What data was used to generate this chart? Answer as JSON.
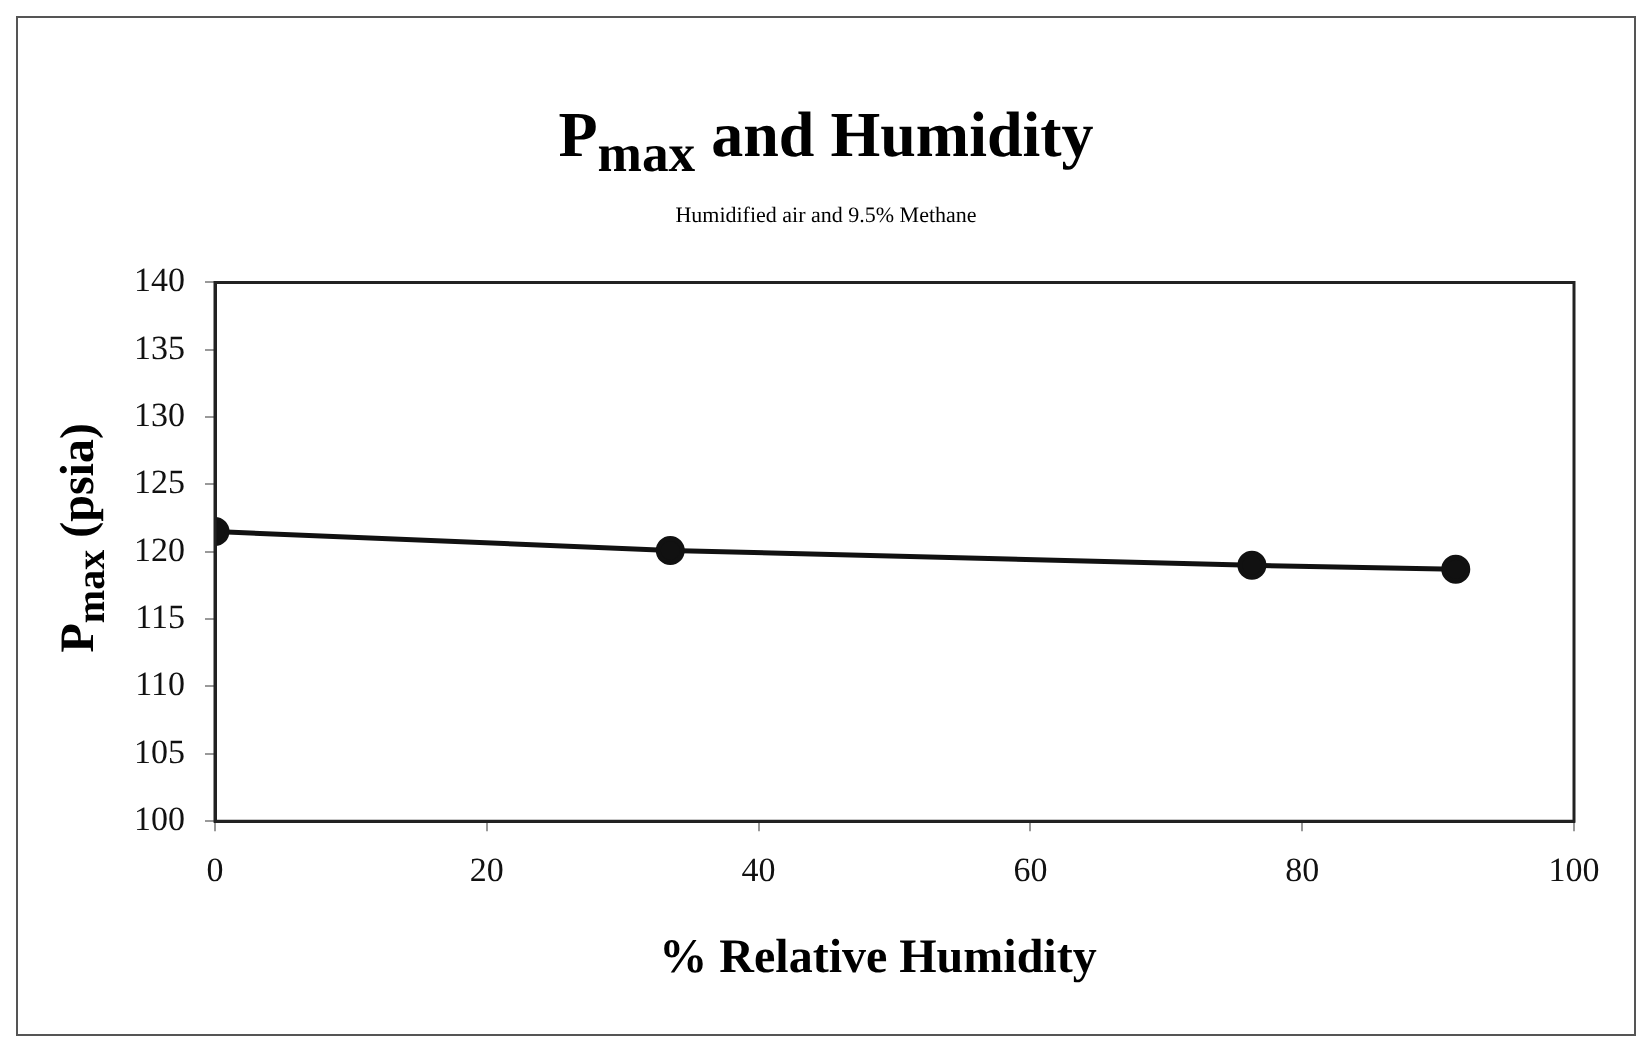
{
  "chart_data": {
    "type": "line",
    "title": "P$_{max}$ and Humidity",
    "subtitle": "Humidified air and 9.5% Methane",
    "xlabel": "% Relative Humidity",
    "ylabel": "P$_{max}$ (psia)",
    "x": [
      0,
      33.5,
      76.3,
      91.3
    ],
    "series": [
      {
        "color": "#111111",
        "values": [
          121.5,
          120.1,
          119.0,
          118.7
        ]
      }
    ],
    "xlim": [
      0,
      100
    ],
    "xticks": [
      0,
      20,
      40,
      60,
      80,
      100
    ],
    "ylim": [
      100,
      140
    ],
    "yticks": [
      100,
      105,
      110,
      115,
      120,
      125,
      130,
      135,
      140
    ],
    "grid": false,
    "legend": false,
    "marker": "circle",
    "line_style": "solid"
  }
}
